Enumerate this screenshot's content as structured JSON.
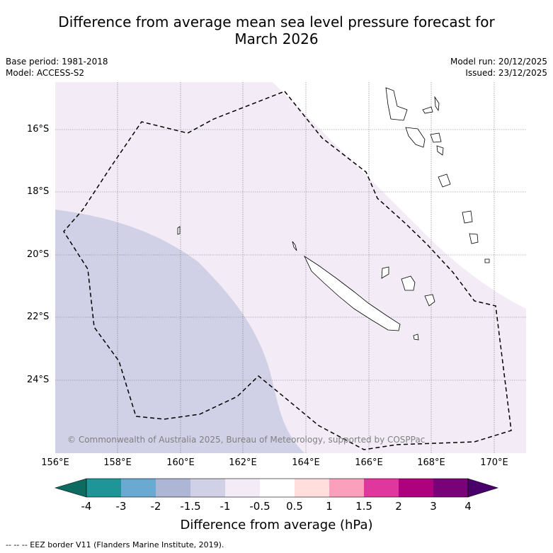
{
  "title_line1": "Difference from average mean sea level pressure forecast for",
  "title_line2": "March 2026",
  "base_period": "Base period: 1981-2018",
  "model": "Model: ACCESS-S2",
  "model_run": "Model run: 20/12/2025",
  "issued": "Issued: 23/12/2025",
  "copyright": "© Commonwealth of Australia 2025, Bureau of Meteorology, supported by COSPPac",
  "lat_labels": [
    "16°S",
    "18°S",
    "20°S",
    "22°S",
    "24°S"
  ],
  "lon_labels": [
    "156°E",
    "158°E",
    "160°E",
    "162°E",
    "164°E",
    "166°E",
    "168°E",
    "170°E"
  ],
  "colorbar": {
    "title": "Difference from average (hPa)",
    "tick_labels": [
      "-4",
      "-3",
      "-2",
      "-1.5",
      "-1",
      "-0.5",
      "0.5",
      "1",
      "1.5",
      "2",
      "3",
      "4"
    ],
    "colors": [
      "#0e6b62",
      "#1e9596",
      "#6aaad2",
      "#adb7d5",
      "#d0d1e6",
      "#f3ecf6",
      "#ffffff",
      "#ffdedc",
      "#fba0bc",
      "#e0379e",
      "#ae017e",
      "#7a0177",
      "#49006a"
    ]
  },
  "fields": [
    {
      "name": "-1.5 to -1 hPa",
      "color": "#d0d1e6"
    },
    {
      "name": "-1 to -0.5 hPa",
      "color": "#f3ecf6"
    }
  ],
  "footer": "-- -- -- EEZ border V11 (Flanders Marine Institute, 2019).",
  "map_extent": {
    "lon": [
      156,
      171
    ],
    "lat": [
      -14.5,
      -26.3
    ]
  }
}
